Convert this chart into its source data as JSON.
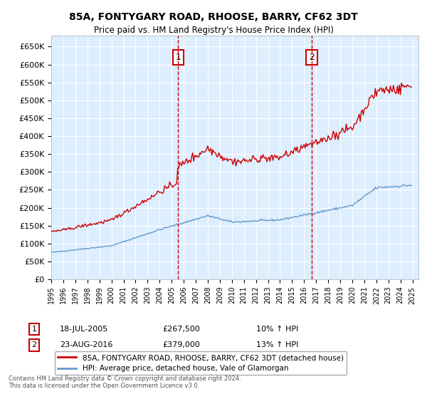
{
  "title": "85A, FONTYGARY ROAD, RHOOSE, BARRY, CF62 3DT",
  "subtitle": "Price paid vs. HM Land Registry's House Price Index (HPI)",
  "ylim": [
    0,
    680000
  ],
  "yticks": [
    0,
    50000,
    100000,
    150000,
    200000,
    250000,
    300000,
    350000,
    400000,
    450000,
    500000,
    550000,
    600000,
    650000
  ],
  "ytick_labels": [
    "£0",
    "£50K",
    "£100K",
    "£150K",
    "£200K",
    "£250K",
    "£300K",
    "£350K",
    "£400K",
    "£450K",
    "£500K",
    "£550K",
    "£600K",
    "£650K"
  ],
  "line1_label": "85A, FONTYGARY ROAD, RHOOSE, BARRY, CF62 3DT (detached house)",
  "line2_label": "HPI: Average price, detached house, Vale of Glamorgan",
  "line1_color": "#cc0000",
  "line2_color": "#6699cc",
  "marker1_date": 2005.54,
  "marker1_label": "1",
  "marker1_price": 267500,
  "marker2_date": 2016.64,
  "marker2_label": "2",
  "marker2_price": 379000,
  "bg_color": "#ddeeff",
  "grid_color": "#ffffff",
  "ann1_num": "1",
  "ann1_date": "18-JUL-2005",
  "ann1_price": "£267,500",
  "ann1_hpi": "10% ↑ HPI",
  "ann2_num": "2",
  "ann2_date": "23-AUG-2016",
  "ann2_price": "£379,000",
  "ann2_hpi": "13% ↑ HPI",
  "footer": "Contains HM Land Registry data © Crown copyright and database right 2024.\nThis data is licensed under the Open Government Licence v3.0."
}
